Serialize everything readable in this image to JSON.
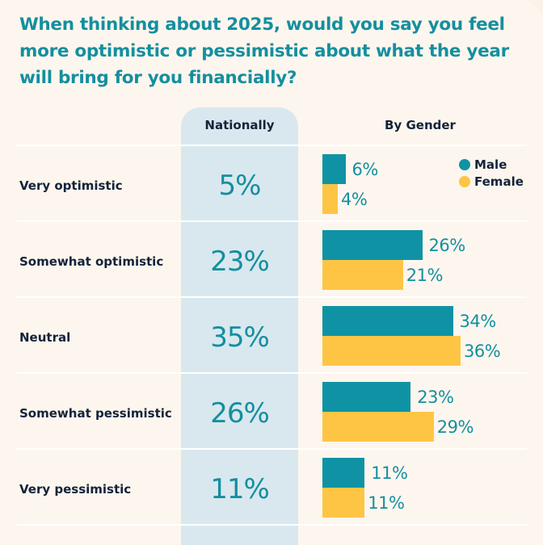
{
  "chart_data": {
    "type": "bar",
    "title": "When thinking about 2025, would you say you feel more optimistic or pessimistic about what the year will bring for you financially?",
    "column_headers": {
      "national": "Nationally",
      "gender": "By Gender"
    },
    "categories": [
      "Very optimistic",
      "Somewhat optimistic",
      "Neutral",
      "Somewhat pessimistic",
      "Very pessimistic"
    ],
    "national": [
      5,
      23,
      35,
      26,
      11
    ],
    "series": [
      {
        "name": "Male",
        "values": [
          6,
          26,
          34,
          23,
          11
        ],
        "color": "#0f93a4"
      },
      {
        "name": "Female",
        "values": [
          4,
          21,
          36,
          29,
          11
        ],
        "color": "#fec545"
      }
    ],
    "unit": "%",
    "legend_position": "top-right",
    "colors": {
      "title": "#148f9f",
      "national_column": "#d9e8ee",
      "background": "#fdf6ee"
    }
  }
}
